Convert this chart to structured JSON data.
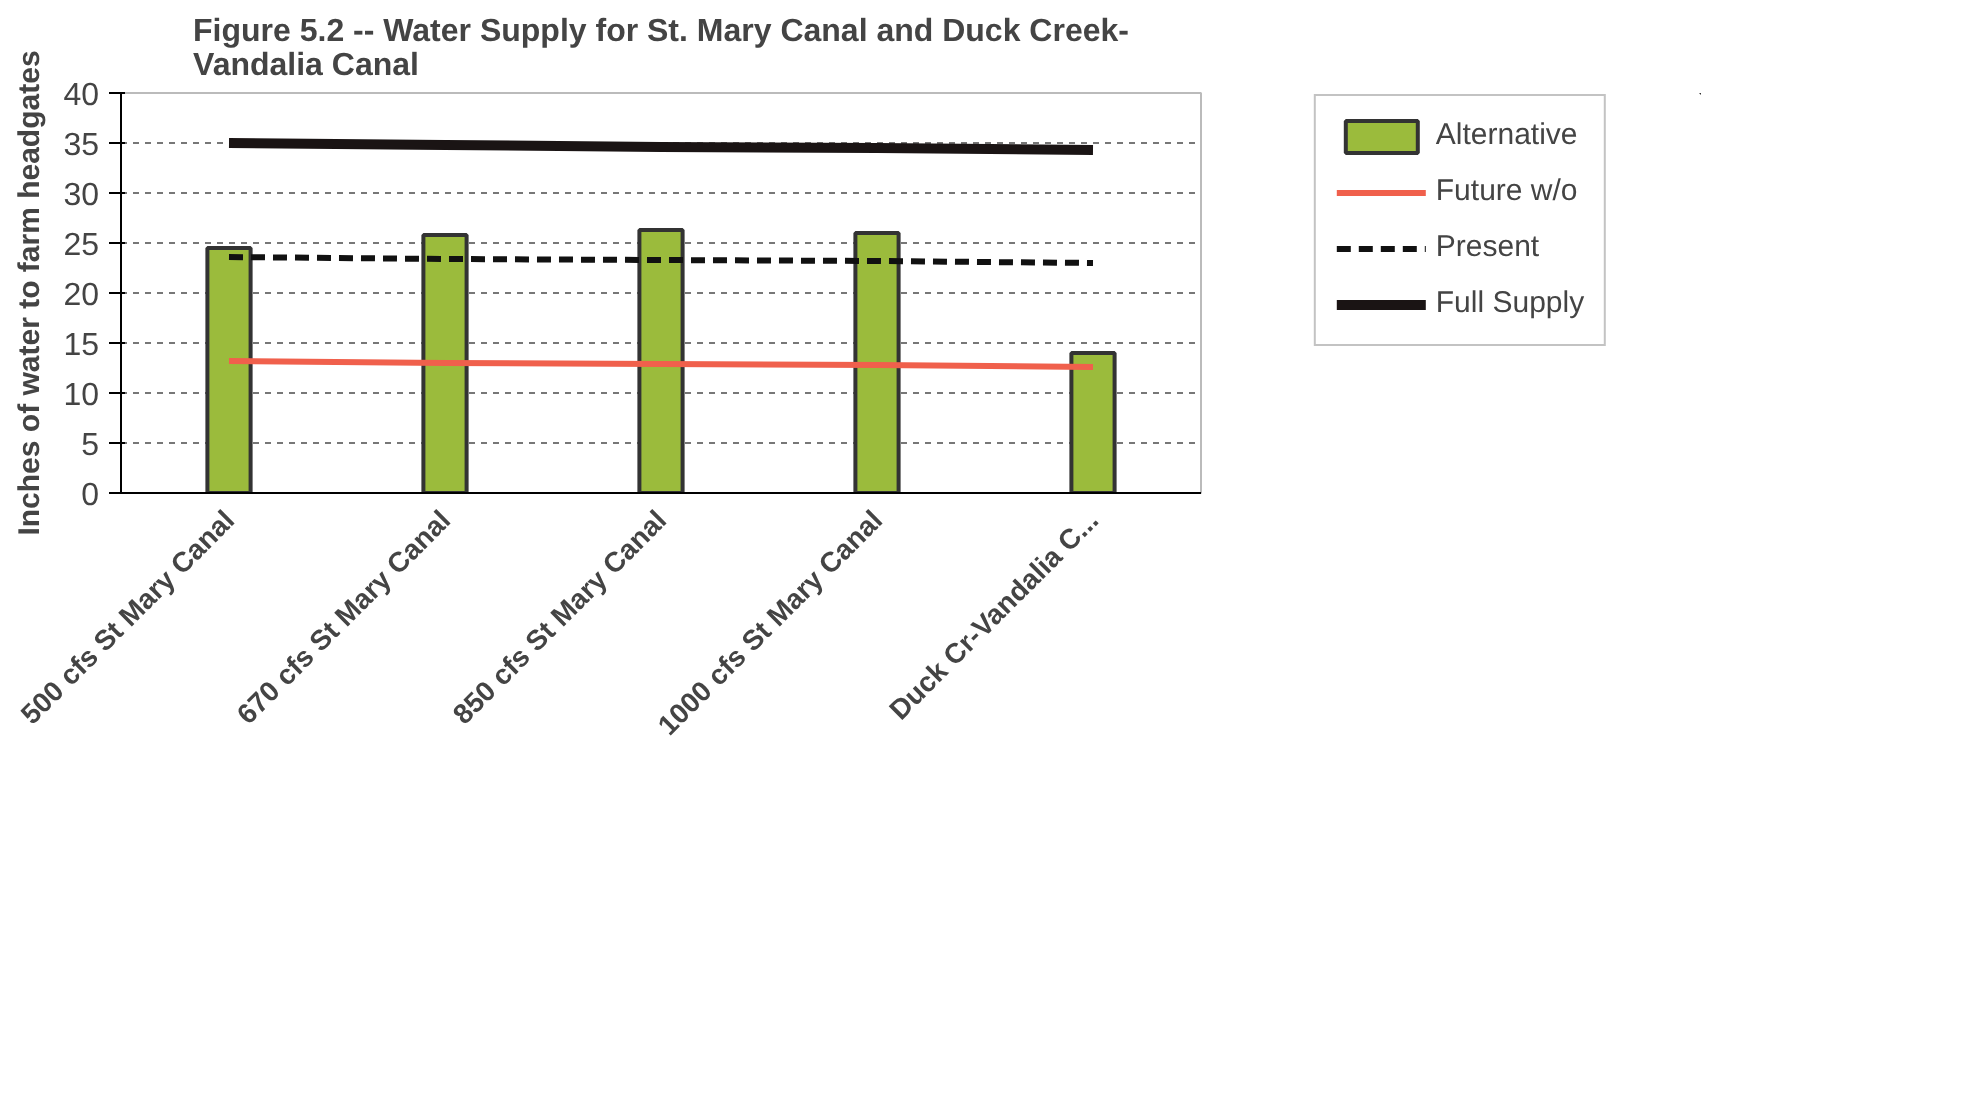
{
  "chart_data": {
    "type": "bar",
    "title": "Figure 5.2 -- Water Supply for St. Mary Canal and Duck Creek-\nVandalia Canal",
    "ylabel": "Inches of water to farm headgates",
    "categories": [
      "500 cfs St Mary Canal",
      "670 cfs St Mary Canal",
      "850 cfs St Mary Canal",
      "1000 cfs St Mary Canal",
      "Duck Cr-Vandalia C..."
    ],
    "series": [
      {
        "name": "Alternative",
        "color": "#9bbb3c",
        "values": [
          24.5,
          25.8,
          26.3,
          26,
          14
        ]
      },
      {
        "name": "Future w/o",
        "type": "line",
        "color": "#f0604c",
        "line_style": "solid",
        "values": [
          13.2,
          13,
          12.9,
          12.8,
          12.6
        ]
      },
      {
        "name": "Present",
        "type": "line",
        "color": "#111111",
        "line_style": "dashed",
        "values": [
          23.6,
          23.4,
          23.3,
          23.2,
          23
        ]
      },
      {
        "name": "Full Supply",
        "type": "line",
        "color": "#1a1414",
        "line_style": "solid",
        "values": [
          35,
          34.8,
          34.6,
          34.5,
          34.3
        ]
      }
    ],
    "ylim": [
      0,
      40
    ],
    "yticks": [
      0,
      5,
      10,
      15,
      20,
      25,
      30,
      35,
      40
    ],
    "grid": "y",
    "legend": "right"
  }
}
